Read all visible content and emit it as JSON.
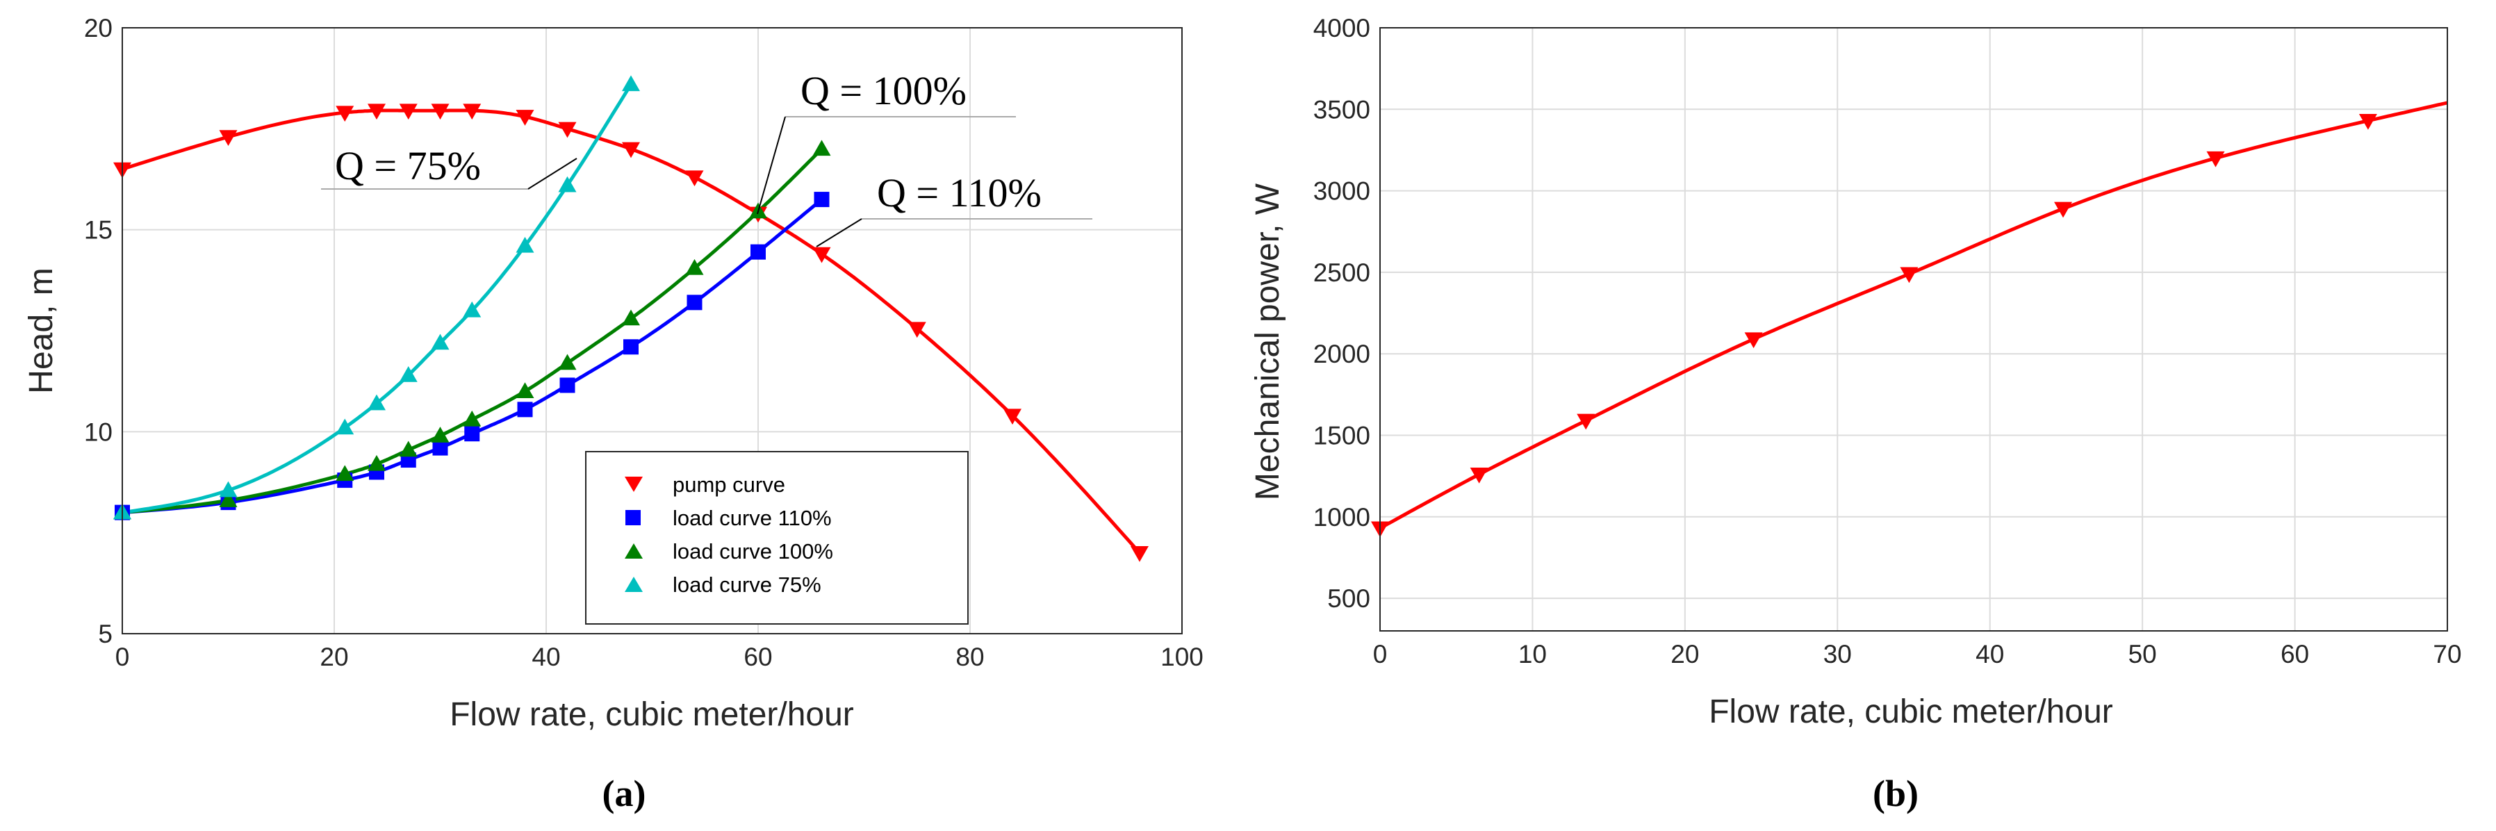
{
  "panel_labels": [
    "(a)",
    "(b)"
  ],
  "colors": {
    "pump": "#ff0000",
    "load110": "#0000ff",
    "load100": "#008000",
    "load75": "#00bfbf"
  },
  "chart_data": [
    {
      "type": "line",
      "xlabel": "Flow rate, cubic meter/hour",
      "ylabel": "Head, m",
      "xlim": [
        0,
        100
      ],
      "ylim": [
        5,
        20
      ],
      "xticks": [
        0,
        20,
        40,
        60,
        80,
        100
      ],
      "yticks": [
        5,
        10,
        15,
        20
      ],
      "grid": true,
      "legend_position": "bottom-right",
      "series": [
        {
          "name": "pump curve",
          "marker": "triangle-down",
          "color": "#ff0000",
          "x": [
            0,
            10,
            21,
            24,
            27,
            30,
            33,
            38,
            42,
            48,
            54,
            60,
            66,
            75,
            84,
            96
          ],
          "y": [
            16.5,
            17.3,
            17.9,
            17.95,
            17.95,
            17.95,
            17.95,
            17.8,
            17.5,
            17.0,
            16.3,
            15.4,
            14.4,
            12.55,
            10.4,
            7.0
          ]
        },
        {
          "name": "load curve 110%",
          "marker": "square",
          "color": "#0000ff",
          "x": [
            0,
            10,
            21,
            24,
            27,
            30,
            33,
            38,
            42,
            48,
            54,
            60,
            66
          ],
          "y": [
            8.0,
            8.25,
            8.8,
            9.0,
            9.3,
            9.6,
            9.95,
            10.55,
            11.15,
            12.1,
            13.2,
            14.45,
            15.75
          ]
        },
        {
          "name": "load curve 100%",
          "marker": "triangle-up",
          "color": "#008000",
          "x": [
            0,
            10,
            21,
            24,
            27,
            30,
            33,
            38,
            42,
            48,
            54,
            60,
            66
          ],
          "y": [
            8.0,
            8.3,
            8.95,
            9.2,
            9.55,
            9.9,
            10.3,
            11.0,
            11.7,
            12.8,
            14.05,
            15.45,
            17.0
          ]
        },
        {
          "name": "load curve 75%",
          "marker": "triangle-up",
          "color": "#00bfbf",
          "x": [
            0,
            10,
            21,
            24,
            27,
            30,
            33,
            38,
            42,
            48
          ],
          "y": [
            8.0,
            8.55,
            10.1,
            10.7,
            11.4,
            12.2,
            13.0,
            14.6,
            16.1,
            18.6
          ]
        }
      ],
      "annotations": [
        {
          "text": "Q = 75%",
          "x": 46,
          "y": 17.3
        },
        {
          "text": "Q = 100%",
          "x": 60.5,
          "y": 15.4
        },
        {
          "text": "Q = 110%",
          "x": 64.5,
          "y": 15.4
        }
      ]
    },
    {
      "type": "line",
      "xlabel": "Flow rate, cubic meter/hour",
      "ylabel": "Mechanical power, W",
      "xlim": [
        0,
        70
      ],
      "ylim": [
        300,
        4000
      ],
      "xticks": [
        0,
        10,
        20,
        30,
        40,
        50,
        60,
        70
      ],
      "yticks": [
        500,
        1000,
        1500,
        2000,
        2500,
        3000,
        3500,
        4000
      ],
      "grid": true,
      "series": [
        {
          "marker": "triangle-down",
          "color": "#ff0000",
          "x": [
            0,
            6.5,
            13.5,
            24.5,
            34.7,
            44.8,
            54.8,
            64.8
          ],
          "y": [
            930,
            1260,
            1590,
            2090,
            2490,
            2890,
            3200,
            3430
          ],
          "curve_end": [
            70,
            3540
          ]
        }
      ]
    }
  ]
}
